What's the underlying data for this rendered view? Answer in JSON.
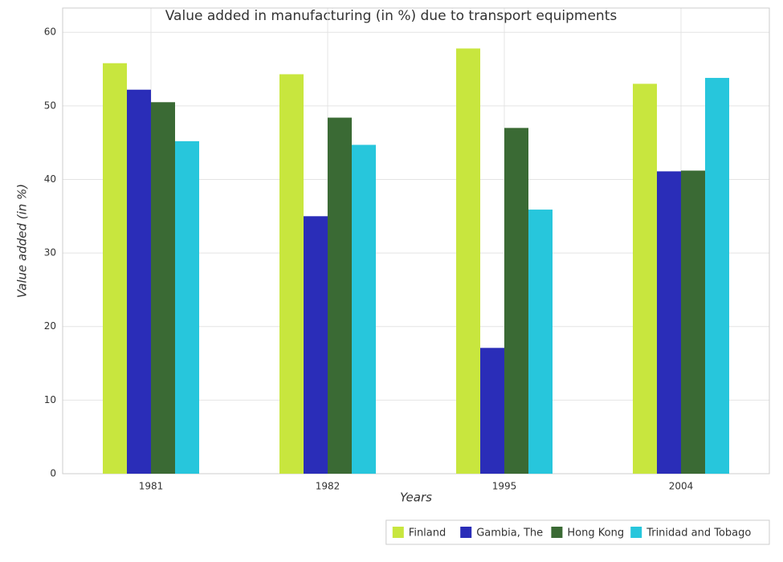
{
  "chart_data": {
    "type": "bar",
    "title": "Value added in manufacturing (in %) due to transport equipments",
    "x_label": "Years",
    "y_label": "Value added (in %)",
    "categories": [
      "1981",
      "1982",
      "1995",
      "2004"
    ],
    "series": [
      {
        "name": "Finland",
        "color": "#c8e63e",
        "values": [
          55.8,
          54.3,
          57.8,
          53.0
        ]
      },
      {
        "name": "Gambia, The",
        "color": "#2a2db8",
        "values": [
          52.2,
          35.0,
          17.1,
          41.1
        ]
      },
      {
        "name": "Hong Kong",
        "color": "#3a6a34",
        "values": [
          50.5,
          48.4,
          47.0,
          41.2
        ]
      },
      {
        "name": "Trinidad and Tobago",
        "color": "#27c6dc",
        "values": [
          45.2,
          44.7,
          35.9,
          53.8
        ]
      }
    ],
    "ylim": [
      0,
      63.3
    ],
    "yticks": [
      0,
      10,
      20,
      30,
      40,
      50,
      60
    ],
    "grid": true,
    "legend": "bottom-right"
  }
}
